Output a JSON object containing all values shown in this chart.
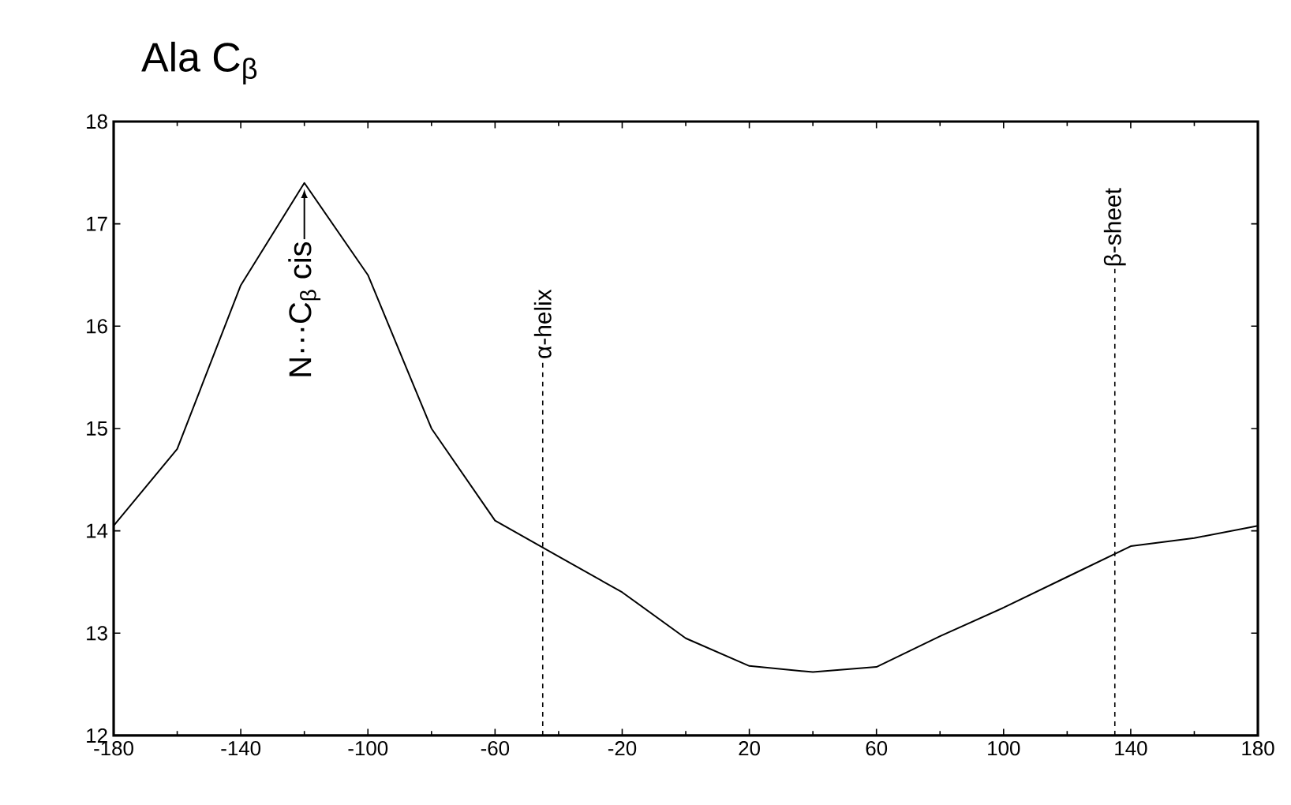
{
  "chart_data": {
    "type": "line",
    "title": "Ala C$_{β}$",
    "x": [
      -180,
      -160,
      -140,
      -120,
      -100,
      -80,
      -60,
      -40,
      -20,
      0,
      20,
      40,
      60,
      80,
      100,
      120,
      140,
      160,
      180
    ],
    "series": [
      {
        "color": "#000000",
        "values": [
          14.05,
          14.8,
          16.4,
          17.4,
          16.5,
          15.0,
          14.1,
          13.75,
          13.4,
          12.95,
          12.68,
          12.62,
          12.67,
          12.97,
          13.25,
          13.55,
          13.85,
          13.93,
          14.05
        ]
      }
    ],
    "xlim": [
      -180,
      180
    ],
    "xticks": [
      -180,
      -140,
      -100,
      -60,
      -20,
      20,
      60,
      100,
      140,
      180
    ],
    "ylim": [
      12,
      18
    ],
    "yticks": [
      12,
      13,
      14,
      15,
      16,
      17,
      18
    ],
    "ref_lines": [
      {
        "axis": "x",
        "value": -45,
        "label": "α-helix",
        "line_style": "dashed"
      },
      {
        "axis": "x",
        "value": 135,
        "label": "β-sheet",
        "line_style": "dashed"
      }
    ],
    "annotations": [
      {
        "text": "N···C$_{β}$ cis",
        "x": -120,
        "y": 17.4
      }
    ],
    "grid": false,
    "marker": "none",
    "line_style": "solid"
  }
}
